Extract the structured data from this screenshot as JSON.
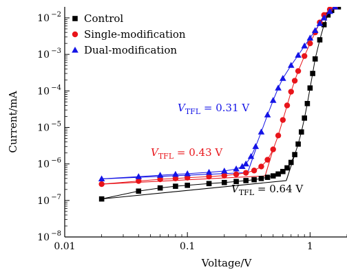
{
  "chart_data": {
    "type": "scatter",
    "xlabel": "Voltage/V",
    "ylabel": "Current/mA",
    "x_scale": "log",
    "y_scale": "log",
    "xlim": [
      0.01,
      2.0
    ],
    "ylim": [
      1e-08,
      0.02
    ],
    "x_ticks": [
      "0.01",
      "0.1",
      "1"
    ],
    "y_ticks": [
      "10−2",
      "10−3",
      "10−4",
      "10−5",
      "10−6",
      "10−7",
      "10−8"
    ],
    "legend_position": "top-left",
    "grid": false,
    "series": [
      {
        "name": "Control",
        "color": "#000000",
        "marker": "square",
        "points": [
          [
            0.02,
            1.1e-07
          ],
          [
            0.04,
            1.8e-07
          ],
          [
            0.06,
            2.2e-07
          ],
          [
            0.08,
            2.45e-07
          ],
          [
            0.1,
            2.6e-07
          ],
          [
            0.15,
            2.9e-07
          ],
          [
            0.2,
            3.1e-07
          ],
          [
            0.25,
            3.3e-07
          ],
          [
            0.3,
            3.5e-07
          ],
          [
            0.35,
            3.7e-07
          ],
          [
            0.4,
            4e-07
          ],
          [
            0.45,
            4.3e-07
          ],
          [
            0.5,
            4.7e-07
          ],
          [
            0.55,
            5.3e-07
          ],
          [
            0.6,
            6.2e-07
          ],
          [
            0.65,
            7.8e-07
          ],
          [
            0.7,
            1.1e-06
          ],
          [
            0.75,
            1.8e-06
          ],
          [
            0.8,
            3.5e-06
          ],
          [
            0.85,
            7.5e-06
          ],
          [
            0.9,
            1.8e-05
          ],
          [
            0.95,
            4.5e-05
          ],
          [
            1.0,
            0.00012
          ],
          [
            1.05,
            0.0003
          ],
          [
            1.1,
            0.00075
          ],
          [
            1.2,
            0.0025
          ],
          [
            1.3,
            0.0065
          ],
          [
            1.4,
            0.012
          ],
          [
            1.5,
            0.016
          ],
          [
            1.7,
            0.02
          ]
        ]
      },
      {
        "name": "Single-modification",
        "color": "#e8141a",
        "marker": "circle",
        "points": [
          [
            0.02,
            2.8e-07
          ],
          [
            0.04,
            3.4e-07
          ],
          [
            0.06,
            3.8e-07
          ],
          [
            0.08,
            4e-07
          ],
          [
            0.1,
            4.2e-07
          ],
          [
            0.15,
            4.5e-07
          ],
          [
            0.2,
            4.8e-07
          ],
          [
            0.25,
            5.2e-07
          ],
          [
            0.3,
            5.7e-07
          ],
          [
            0.35,
            6.6e-07
          ],
          [
            0.4,
            8.5e-07
          ],
          [
            0.45,
            1.3e-06
          ],
          [
            0.5,
            2.5e-06
          ],
          [
            0.55,
            6e-06
          ],
          [
            0.6,
            1.6e-05
          ],
          [
            0.65,
            4e-05
          ],
          [
            0.7,
            9.5e-05
          ],
          [
            0.75,
            0.00019
          ],
          [
            0.8,
            0.00035
          ],
          [
            0.9,
            0.0009
          ],
          [
            1.0,
            0.002
          ],
          [
            1.1,
            0.004
          ],
          [
            1.2,
            0.0075
          ],
          [
            1.3,
            0.012
          ],
          [
            1.45,
            0.017
          ],
          [
            1.6,
            0.02
          ]
        ]
      },
      {
        "name": "Dual-modification",
        "color": "#1414e6",
        "marker": "triangle",
        "points": [
          [
            0.02,
            3.9e-07
          ],
          [
            0.04,
            4.5e-07
          ],
          [
            0.06,
            4.9e-07
          ],
          [
            0.08,
            5.2e-07
          ],
          [
            0.1,
            5.4e-07
          ],
          [
            0.15,
            5.9e-07
          ],
          [
            0.2,
            6.4e-07
          ],
          [
            0.25,
            7.3e-07
          ],
          [
            0.28,
            8.5e-07
          ],
          [
            0.3,
            1e-06
          ],
          [
            0.33,
            1.6e-06
          ],
          [
            0.36,
            3e-06
          ],
          [
            0.4,
            7.5e-06
          ],
          [
            0.45,
            2.2e-05
          ],
          [
            0.5,
            5.5e-05
          ],
          [
            0.55,
            0.00012
          ],
          [
            0.6,
            0.00022
          ],
          [
            0.7,
            0.0005
          ],
          [
            0.8,
            0.00095
          ],
          [
            0.9,
            0.0017
          ],
          [
            1.0,
            0.0028
          ],
          [
            1.1,
            0.0045
          ],
          [
            1.2,
            0.007
          ],
          [
            1.3,
            0.01
          ],
          [
            1.45,
            0.015
          ],
          [
            1.6,
            0.02
          ]
        ]
      }
    ],
    "fit_lines": [
      {
        "series": "Control",
        "points": [
          [
            0.02,
            1.1e-07
          ],
          [
            0.64,
            3.5e-07
          ]
        ]
      },
      {
        "series": "Control",
        "points": [
          [
            0.64,
            3.5e-07
          ],
          [
            0.75,
            1.8e-06
          ]
        ]
      },
      {
        "series": "Single-modification",
        "points": [
          [
            0.02,
            2.8e-07
          ],
          [
            0.43,
            4.7e-07
          ]
        ]
      },
      {
        "series": "Single-modification",
        "points": [
          [
            0.43,
            4.7e-07
          ],
          [
            0.5,
            2.5e-06
          ]
        ]
      },
      {
        "series": "Dual-modification",
        "points": [
          [
            0.02,
            3.9e-07
          ],
          [
            0.31,
            5.8e-07
          ]
        ]
      },
      {
        "series": "Dual-modification",
        "points": [
          [
            0.31,
            5.8e-07
          ],
          [
            0.37,
            3.2e-06
          ]
        ]
      }
    ],
    "annotations": [
      {
        "prefix": "V",
        "sub": "TFL",
        "value": " = 0.31 V",
        "color": "#1414e6"
      },
      {
        "prefix": "V",
        "sub": "TFL",
        "value": " = 0.43 V",
        "color": "#e8141a"
      },
      {
        "prefix": "V",
        "sub": "TFL",
        "value": " = 0.64 V",
        "color": "#000000"
      }
    ]
  }
}
